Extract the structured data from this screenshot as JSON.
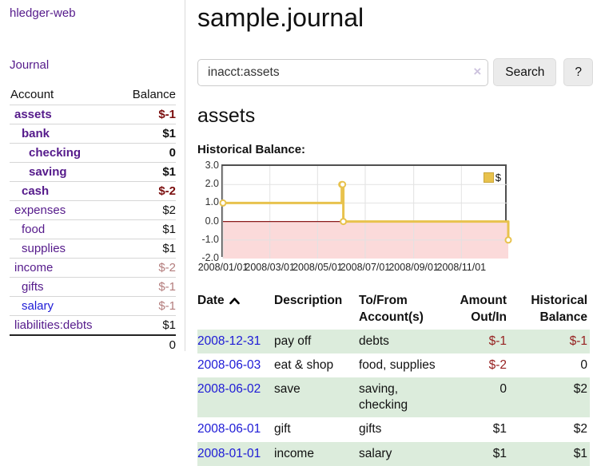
{
  "app": {
    "brand": "hledger-web",
    "nav_journal": "Journal"
  },
  "sidebar": {
    "header": {
      "account": "Account",
      "balance": "Balance"
    },
    "accounts": [
      {
        "name": "assets",
        "indent": 1,
        "balance": "$-1",
        "bold": true,
        "neg": "strong"
      },
      {
        "name": "bank",
        "indent": 2,
        "balance": "$1",
        "bold": true
      },
      {
        "name": "checking",
        "indent": 3,
        "balance": "0",
        "bold": true
      },
      {
        "name": "saving",
        "indent": 3,
        "balance": "$1",
        "bold": true
      },
      {
        "name": "cash",
        "indent": 2,
        "balance": "$-2",
        "bold": true,
        "neg": "strong"
      },
      {
        "name": "expenses",
        "indent": 1,
        "balance": "$2"
      },
      {
        "name": "food",
        "indent": 2,
        "balance": "$1"
      },
      {
        "name": "supplies",
        "indent": 2,
        "balance": "$1"
      },
      {
        "name": "income",
        "indent": 1,
        "balance": "$-2",
        "neg": "soft"
      },
      {
        "name": "gifts",
        "indent": 2,
        "balance": "$-1",
        "neg": "soft"
      },
      {
        "name": "salary",
        "indent": 2,
        "balance": "$-1",
        "neg": "soft",
        "link": "blue"
      },
      {
        "name": "liabilities:debts",
        "indent": 1,
        "balance": "$1"
      }
    ],
    "total": "0"
  },
  "main": {
    "title": "sample.journal",
    "search": {
      "value": "inacct:assets",
      "clear_icon": "×",
      "button_label": "Search",
      "help_label": "?"
    },
    "account_heading": "assets",
    "chart_heading": "Historical Balance:"
  },
  "chart_data": {
    "type": "line",
    "title": "Historical Balance",
    "series": [
      {
        "name": "$",
        "color": "#e8c24d",
        "step": true,
        "points": [
          [
            "2008-01-01",
            1
          ],
          [
            "2008-06-01",
            2
          ],
          [
            "2008-06-02",
            2
          ],
          [
            "2008-06-03",
            0
          ],
          [
            "2008-12-31",
            -1
          ]
        ]
      }
    ],
    "xlabel": "",
    "ylabel": "",
    "ylim": [
      -2,
      3
    ],
    "yticks": [
      "3.0",
      "2.0",
      "1.0",
      "0.0",
      "-1.0",
      "-2.0"
    ],
    "xticks": [
      "2008/01/01",
      "2008/03/01",
      "2008/05/01",
      "2008/07/01",
      "2008/09/01",
      "2008/11/01"
    ],
    "x_range": [
      "2008-01-01",
      "2008-12-31"
    ],
    "grid": true,
    "legend": {
      "label": "$",
      "position": "top-right"
    },
    "negative_region_color": "#fbdada",
    "zero_line_color": "#8b1c1c",
    "grid_color": "#e2e2e2"
  },
  "register": {
    "headers": {
      "date": "Date",
      "description": "Description",
      "account": "To/From Account(s)",
      "amount": "Amount Out/In",
      "balance": "Historical Balance"
    },
    "rows": [
      {
        "date": "2008-12-31",
        "description": "pay off",
        "account": "debts",
        "amount": "$-1",
        "balance": "$-1",
        "amount_neg": true,
        "balance_neg": true,
        "shaded": true
      },
      {
        "date": "2008-06-03",
        "description": "eat & shop",
        "account": "food, supplies",
        "amount": "$-2",
        "balance": "0",
        "amount_neg": true
      },
      {
        "date": "2008-06-02",
        "description": "save",
        "account": "saving, checking",
        "amount": "0",
        "balance": "$2",
        "shaded": true
      },
      {
        "date": "2008-06-01",
        "description": "gift",
        "account": "gifts",
        "amount": "$1",
        "balance": "$2"
      },
      {
        "date": "2008-01-01",
        "description": "income",
        "account": "salary",
        "amount": "$1",
        "balance": "$1",
        "shaded": true
      }
    ]
  },
  "colors": {
    "link_purple": "#551a8b",
    "link_blue": "#1d1ad6",
    "negative_dark": "#7a0d0d",
    "negative": "#962020",
    "negative_soft": "#b37c7c",
    "row_green": "#dcecdc"
  }
}
